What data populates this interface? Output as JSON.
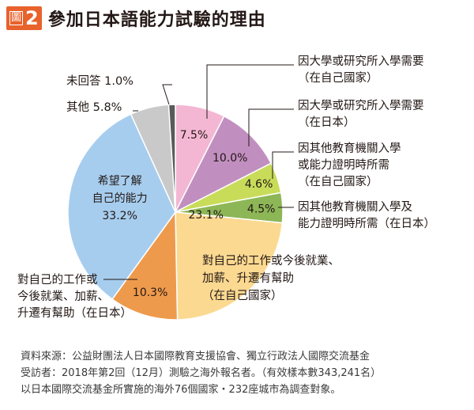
{
  "figure": {
    "badge_word": "圖",
    "badge_number": "2",
    "title": "參加日本語能力試驗的理由"
  },
  "chart_data": {
    "type": "pie",
    "title": "參加日本語能力試驗的理由",
    "start": "top, clockwise",
    "slices": [
      {
        "label_lines": [
          "因大學或研究所入學需要",
          "（在自己國家）"
        ],
        "value": 7.5,
        "value_text": "7.5%",
        "color": "#f4b7d3"
      },
      {
        "label_lines": [
          "因大學或研究所入學需要",
          "（在日本）"
        ],
        "value": 10.0,
        "value_text": "10.0%",
        "color": "#c18fbf"
      },
      {
        "label_lines": [
          "因其他教育機關入學",
          "或能力證明時所需",
          "（在自己國家）"
        ],
        "value": 4.6,
        "value_text": "4.6%",
        "color": "#c8dc5a"
      },
      {
        "label_lines": [
          "因其他教育機關入學及",
          "能力證明時所需（在日本）"
        ],
        "value": 4.5,
        "value_text": "4.5%",
        "color": "#8db657"
      },
      {
        "label_lines": [
          "對自己的工作或今後就業、",
          "加薪、升遷有幫助",
          "（在自己國家）"
        ],
        "value": 23.1,
        "value_text": "23.1%",
        "color": "#fbd991"
      },
      {
        "label_lines": [
          "對自己的工作或",
          "今後就業、加薪、",
          "升遷有幫助（在日本）"
        ],
        "value": 10.3,
        "value_text": "10.3%",
        "color": "#ee9a4c"
      },
      {
        "label_lines": [
          "希望了解",
          "自己的能力"
        ],
        "value": 33.2,
        "value_text": "33.2%",
        "color": "#a6cdee"
      },
      {
        "label_lines": [
          "其他"
        ],
        "value": 5.8,
        "value_text": "5.8%",
        "color": "#c9c9ca"
      },
      {
        "label_lines": [
          "未回答"
        ],
        "value": 1.0,
        "value_text": "1.0%",
        "color": "#5a5a5a"
      }
    ]
  },
  "source_lines": [
    "資料來源：公益財團法人日本國際教育支援協會、獨立行政法人國際交流基金",
    "受訪者：2018年第2回（12月）測驗之海外報名者。（有效樣本數343,241名）",
    "以日本國際交流基金所實施的海外76個國家・232座城市為調查對象。"
  ]
}
